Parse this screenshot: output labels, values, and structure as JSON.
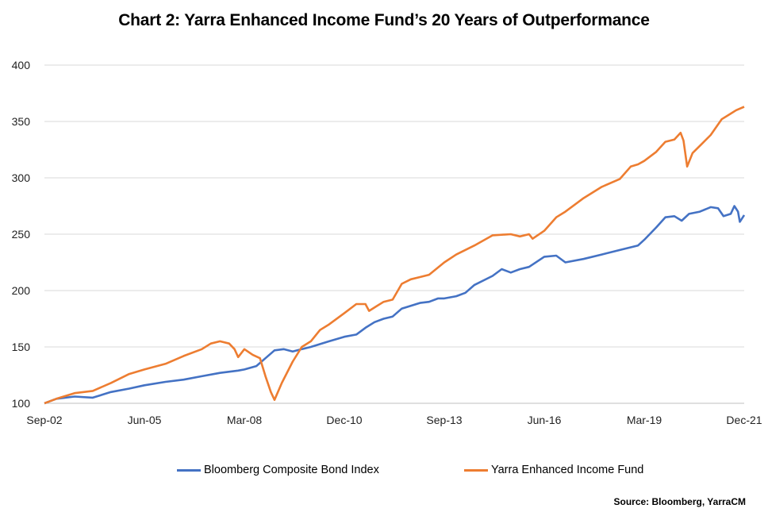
{
  "title": "Chart 2: Yarra Enhanced Income Fund’s 20 Years of Outperformance",
  "source": "Source: Bloomberg, YarraCM",
  "colors": {
    "bond": "#4472C4",
    "fund": "#ED7D31",
    "grid": "#D9D9D9"
  },
  "chart_data": {
    "type": "line",
    "title": "Chart 2: Yarra Enhanced Income Fund’s 20 Years of Outperformance",
    "xlabel": "",
    "ylabel": "",
    "ylim": [
      100,
      400
    ],
    "yticks": [
      100,
      150,
      200,
      250,
      300,
      350,
      400
    ],
    "xlim": [
      2002.67,
      2021.92
    ],
    "xticks": [
      {
        "label": "Sep-02",
        "x": 2002.67
      },
      {
        "label": "Jun-05",
        "x": 2005.42
      },
      {
        "label": "Mar-08",
        "x": 2008.17
      },
      {
        "label": "Dec-10",
        "x": 2010.92
      },
      {
        "label": "Sep-13",
        "x": 2013.67
      },
      {
        "label": "Jun-16",
        "x": 2016.42
      },
      {
        "label": "Mar-19",
        "x": 2019.17
      },
      {
        "label": "Dec-21",
        "x": 2021.92
      }
    ],
    "grid": true,
    "legend_position": "bottom",
    "series": [
      {
        "name": "Bloomberg Composite Bond Index",
        "color": "#4472C4",
        "points": [
          [
            2002.67,
            100
          ],
          [
            2003.0,
            104
          ],
          [
            2003.5,
            106
          ],
          [
            2004.0,
            105
          ],
          [
            2004.5,
            110
          ],
          [
            2005.0,
            113
          ],
          [
            2005.42,
            116
          ],
          [
            2006.0,
            119
          ],
          [
            2006.5,
            121
          ],
          [
            2007.0,
            124
          ],
          [
            2007.5,
            127
          ],
          [
            2008.0,
            129
          ],
          [
            2008.17,
            130
          ],
          [
            2008.5,
            133
          ],
          [
            2008.75,
            140
          ],
          [
            2009.0,
            147
          ],
          [
            2009.25,
            148
          ],
          [
            2009.5,
            146
          ],
          [
            2009.75,
            148
          ],
          [
            2010.0,
            150
          ],
          [
            2010.5,
            155
          ],
          [
            2010.92,
            159
          ],
          [
            2011.25,
            161
          ],
          [
            2011.5,
            167
          ],
          [
            2011.75,
            172
          ],
          [
            2012.0,
            175
          ],
          [
            2012.25,
            177
          ],
          [
            2012.5,
            184
          ],
          [
            2013.0,
            189
          ],
          [
            2013.25,
            190
          ],
          [
            2013.5,
            193
          ],
          [
            2013.67,
            193
          ],
          [
            2014.0,
            195
          ],
          [
            2014.25,
            198
          ],
          [
            2014.5,
            205
          ],
          [
            2015.0,
            213
          ],
          [
            2015.25,
            219
          ],
          [
            2015.5,
            216
          ],
          [
            2015.75,
            219
          ],
          [
            2016.0,
            221
          ],
          [
            2016.42,
            230
          ],
          [
            2016.75,
            231
          ],
          [
            2017.0,
            225
          ],
          [
            2017.5,
            228
          ],
          [
            2018.0,
            232
          ],
          [
            2018.5,
            236
          ],
          [
            2019.0,
            240
          ],
          [
            2019.17,
            245
          ],
          [
            2019.5,
            256
          ],
          [
            2019.75,
            265
          ],
          [
            2020.0,
            266
          ],
          [
            2020.2,
            262
          ],
          [
            2020.4,
            268
          ],
          [
            2020.7,
            270
          ],
          [
            2021.0,
            274
          ],
          [
            2021.2,
            273
          ],
          [
            2021.35,
            266
          ],
          [
            2021.55,
            268
          ],
          [
            2021.65,
            275
          ],
          [
            2021.75,
            270
          ],
          [
            2021.8,
            261
          ],
          [
            2021.92,
            267
          ]
        ]
      },
      {
        "name": "Yarra Enhanced Income Fund",
        "color": "#ED7D31",
        "points": [
          [
            2002.67,
            100
          ],
          [
            2003.0,
            104
          ],
          [
            2003.5,
            109
          ],
          [
            2004.0,
            111
          ],
          [
            2004.5,
            118
          ],
          [
            2005.0,
            126
          ],
          [
            2005.42,
            130
          ],
          [
            2006.0,
            135
          ],
          [
            2006.5,
            142
          ],
          [
            2007.0,
            148
          ],
          [
            2007.25,
            153
          ],
          [
            2007.5,
            155
          ],
          [
            2007.75,
            153
          ],
          [
            2007.9,
            148
          ],
          [
            2008.0,
            141
          ],
          [
            2008.17,
            148
          ],
          [
            2008.4,
            143
          ],
          [
            2008.6,
            140
          ],
          [
            2008.75,
            124
          ],
          [
            2008.9,
            110
          ],
          [
            2009.0,
            103
          ],
          [
            2009.2,
            118
          ],
          [
            2009.5,
            137
          ],
          [
            2009.75,
            150
          ],
          [
            2010.0,
            155
          ],
          [
            2010.25,
            165
          ],
          [
            2010.5,
            170
          ],
          [
            2010.92,
            180
          ],
          [
            2011.25,
            188
          ],
          [
            2011.5,
            188
          ],
          [
            2011.6,
            182
          ],
          [
            2011.8,
            186
          ],
          [
            2012.0,
            190
          ],
          [
            2012.25,
            192
          ],
          [
            2012.5,
            206
          ],
          [
            2012.75,
            210
          ],
          [
            2013.0,
            212
          ],
          [
            2013.25,
            214
          ],
          [
            2013.67,
            225
          ],
          [
            2014.0,
            232
          ],
          [
            2014.5,
            240
          ],
          [
            2015.0,
            249
          ],
          [
            2015.5,
            250
          ],
          [
            2015.75,
            248
          ],
          [
            2016.0,
            250
          ],
          [
            2016.1,
            246
          ],
          [
            2016.42,
            253
          ],
          [
            2016.75,
            265
          ],
          [
            2017.0,
            270
          ],
          [
            2017.5,
            282
          ],
          [
            2018.0,
            292
          ],
          [
            2018.5,
            299
          ],
          [
            2018.8,
            310
          ],
          [
            2019.0,
            312
          ],
          [
            2019.17,
            315
          ],
          [
            2019.5,
            323
          ],
          [
            2019.75,
            332
          ],
          [
            2020.0,
            334
          ],
          [
            2020.17,
            340
          ],
          [
            2020.25,
            333
          ],
          [
            2020.35,
            310
          ],
          [
            2020.5,
            322
          ],
          [
            2020.75,
            330
          ],
          [
            2021.0,
            338
          ],
          [
            2021.3,
            352
          ],
          [
            2021.5,
            356
          ],
          [
            2021.7,
            360
          ],
          [
            2021.92,
            363
          ]
        ]
      }
    ]
  }
}
